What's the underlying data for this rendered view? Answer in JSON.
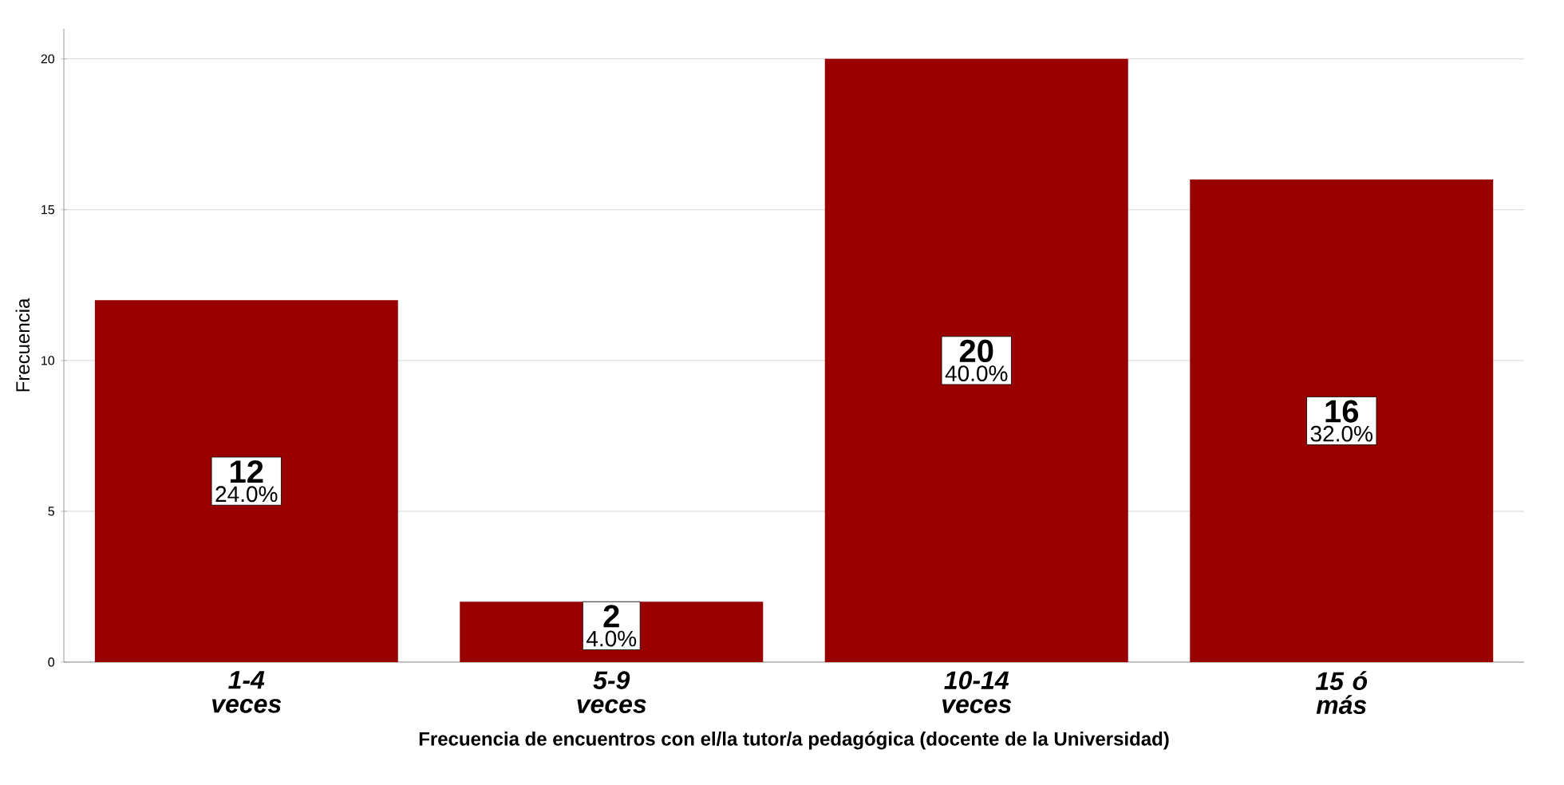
{
  "chart_data": {
    "type": "bar",
    "xlabel": "Frecuencia de encuentros con el/la tutor/a pedagógica (docente de la Universidad)",
    "ylabel": "Frecuencia",
    "categories": [
      "1-4 veces",
      "5-9 veces",
      "10-14 veces",
      "15 ó más"
    ],
    "values": [
      12,
      2,
      20,
      16
    ],
    "color": "#990000",
    "data_labels": true,
    "annotations": [
      "24.0%",
      "4.0%",
      "40.0%",
      "32.0%"
    ],
    "ylim": [
      0,
      21
    ],
    "yticks": [
      0,
      5,
      10,
      15,
      20
    ],
    "grid": "y"
  }
}
